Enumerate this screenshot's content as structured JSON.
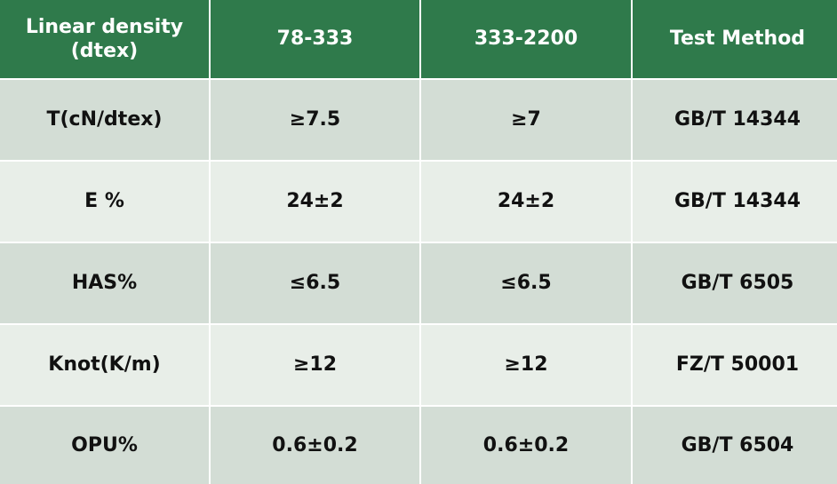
{
  "table": {
    "header": [
      "Linear density (dtex)",
      "78-333",
      "333-2200",
      "Test Method"
    ],
    "rows": [
      [
        "T(cN/dtex)",
        "≥7.5",
        "≥7",
        "GB/T 14344"
      ],
      [
        "E %",
        "24±2",
        "24±2",
        "GB/T 14344"
      ],
      [
        "HAS%",
        "≤6.5",
        "≤6.5",
        "GB/T 6505"
      ],
      [
        "Knot(K/m)",
        "≥12",
        "≥12",
        "FZ/T 50001"
      ],
      [
        "OPU%",
        "0.6±0.2",
        "0.6±0.2",
        "GB/T 6504"
      ]
    ]
  }
}
